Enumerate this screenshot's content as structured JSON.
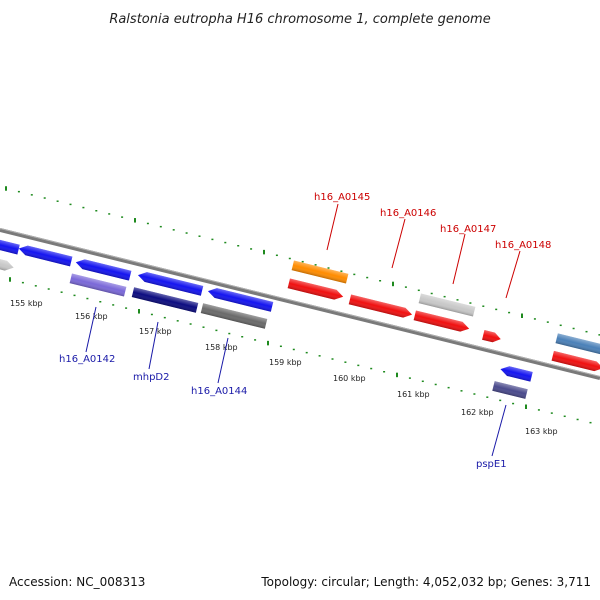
{
  "title": "Ralstonia eutropha H16 chromosome 1, complete genome",
  "footer": {
    "accession": "Accession: NC_008313",
    "summary": "Topology: circular; Length: 4,052,032 bp; Genes: 3,711"
  },
  "kbp_labels": [
    "155 kbp",
    "156 kbp",
    "157 kbp",
    "158 kbp",
    "159 kbp",
    "160 kbp",
    "161 kbp",
    "162 kbp",
    "163 kbp"
  ],
  "gene_labels_top": [
    "h16_A0145",
    "h16_A0146",
    "h16_A0147",
    "h16_A0148"
  ],
  "gene_labels_bottom": [
    "h16_A0142",
    "mhpD2",
    "h16_A0144",
    "pspE1"
  ],
  "colors": {
    "backbone": "#7a7a7a",
    "ticks": "#1e8a1e",
    "forward_label": "#cc0000",
    "reverse_label": "#1a1aa8",
    "blue": "#1414f0",
    "red": "#f01010",
    "orange": "#ff8c00",
    "gray": "#c8c8c8",
    "purple": "#7a68d8",
    "navy": "#0c0c80",
    "darkgray": "#6a6a6a",
    "steelblue": "#4a80b8",
    "slate": "#4a4a8c"
  }
}
